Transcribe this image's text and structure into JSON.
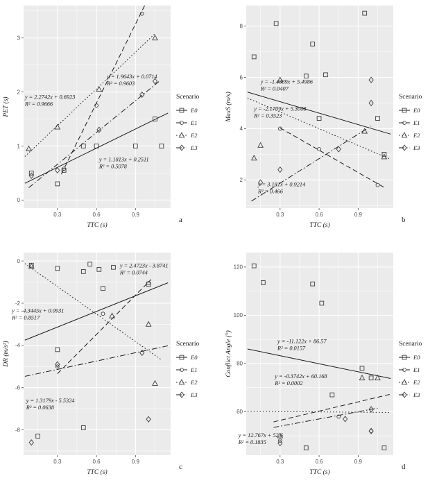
{
  "figure": {
    "background": "#ffffff",
    "panel_background": "#ebebeb",
    "grid_color": "#ffffff",
    "line_color": "#1a1a1a",
    "marker_color": "#3d3d3d"
  },
  "chart_data": [
    {
      "panel_label": "a",
      "type": "scatter",
      "xlabel": "TTC (s)",
      "ylabel": "PET (s)",
      "xticks": [
        0.3,
        0.6,
        0.9
      ],
      "yticks": [
        0,
        1,
        2,
        3
      ],
      "xlim": [
        0.04,
        1.17
      ],
      "ylim": [
        -0.15,
        3.6
      ],
      "legend": {
        "title": "Scenario",
        "entries": [
          {
            "label": "E0",
            "marker": "square",
            "linetype": "solid"
          },
          {
            "label": "E1",
            "marker": "circle",
            "linetype": "dashed"
          },
          {
            "label": "E2",
            "marker": "triangle",
            "linetype": "dotted"
          },
          {
            "label": "E3",
            "marker": "diamond",
            "linetype": "dashdot"
          }
        ]
      },
      "series": [
        {
          "name": "E0",
          "marker": "square",
          "linetype": "solid",
          "fit": {
            "slope": 1.1813,
            "intercept": 0.2511,
            "x0": 0.05,
            "x1": 1.15
          },
          "points": [
            [
              0.1,
              0.5
            ],
            [
              0.3,
              0.3
            ],
            [
              0.35,
              0.55
            ],
            [
              0.5,
              1.0
            ],
            [
              0.6,
              1.0
            ],
            [
              0.9,
              1.0
            ],
            [
              1.05,
              1.5
            ],
            [
              1.1,
              1.0
            ]
          ]
        },
        {
          "name": "E1",
          "marker": "circle",
          "linetype": "dashed",
          "fit": {
            "slope": 4.875,
            "intercept": -1.13,
            "x0": 0.33,
            "x1": 0.97
          },
          "points": [
            [
              0.35,
              0.58
            ],
            [
              0.6,
              1.75
            ],
            [
              0.95,
              3.45
            ]
          ]
        },
        {
          "name": "E2",
          "marker": "triangle",
          "linetype": "dotted",
          "fit": {
            "slope": 2.2742,
            "intercept": 0.6923,
            "x0": 0.05,
            "x1": 1.05
          },
          "points": [
            [
              0.08,
              0.95
            ],
            [
              0.3,
              1.35
            ],
            [
              0.62,
              2.05
            ],
            [
              1.05,
              3.0
            ]
          ]
        },
        {
          "name": "E3",
          "marker": "diamond",
          "linetype": "dashdot",
          "fit": {
            "slope": 1.9643,
            "intercept": 0.0714,
            "x0": 0.08,
            "x1": 1.08
          },
          "points": [
            [
              0.1,
              0.45
            ],
            [
              0.3,
              0.55
            ],
            [
              0.62,
              1.3
            ],
            [
              0.95,
              1.95
            ],
            [
              1.05,
              2.2
            ]
          ]
        }
      ],
      "annotations": [
        {
          "x": 0.05,
          "y": 1.87,
          "lines": [
            "y = 2.2742x + 0.6923",
            "R² = 0.9666"
          ]
        },
        {
          "x": 0.68,
          "y": 2.25,
          "lines": [
            "y = 1.9643x + 0.0714",
            "R² = 0.9603"
          ]
        },
        {
          "x": 0.62,
          "y": 0.72,
          "lines": [
            "y = 1.1813x + 0.2511",
            "R² = 0.5078"
          ]
        }
      ]
    },
    {
      "panel_label": "b",
      "type": "scatter",
      "xlabel": "TTC (s)",
      "ylabel": "MaxS (m/s)",
      "xticks": [
        0.3,
        0.6,
        0.9
      ],
      "yticks": [
        2,
        4,
        6,
        8
      ],
      "xlim": [
        0.04,
        1.17
      ],
      "ylim": [
        0.9,
        8.8
      ],
      "legend": {
        "title": "Scenario",
        "entries": [
          {
            "label": "E0",
            "marker": "square",
            "linetype": "solid"
          },
          {
            "label": "E1",
            "marker": "circle",
            "linetype": "dashed"
          },
          {
            "label": "E2",
            "marker": "triangle",
            "linetype": "dotted"
          },
          {
            "label": "E3",
            "marker": "diamond",
            "linetype": "dashdot"
          }
        ]
      },
      "series": [
        {
          "name": "E0",
          "marker": "square",
          "linetype": "solid",
          "fit": {
            "slope": -1.4889,
            "intercept": 5.4986,
            "x0": 0.05,
            "x1": 1.15
          },
          "points": [
            [
              0.1,
              6.8
            ],
            [
              0.27,
              8.1
            ],
            [
              0.5,
              6.05
            ],
            [
              0.55,
              7.3
            ],
            [
              0.6,
              4.4
            ],
            [
              0.65,
              6.1
            ],
            [
              0.95,
              8.5
            ],
            [
              1.05,
              4.4
            ],
            [
              1.1,
              3.0
            ]
          ]
        },
        {
          "name": "E1",
          "marker": "circle",
          "linetype": "dashed",
          "fit": {
            "slope": -2.9,
            "intercept": 4.9,
            "x0": 0.3,
            "x1": 1.1
          },
          "points": [
            [
              0.3,
              4.0
            ],
            [
              0.6,
              3.2
            ],
            [
              1.05,
              1.8
            ]
          ]
        },
        {
          "name": "E2",
          "marker": "triangle",
          "linetype": "dotted",
          "fit": {
            "slope": -2.1709,
            "intercept": 5.3008,
            "x0": 0.05,
            "x1": 1.15
          },
          "points": [
            [
              0.1,
              2.85
            ],
            [
              0.15,
              3.35
            ],
            [
              0.3,
              5.9
            ],
            [
              0.95,
              3.9
            ],
            [
              1.1,
              2.9
            ]
          ]
        },
        {
          "name": "E3",
          "marker": "diamond",
          "linetype": "dashdot",
          "fit": {
            "slope": 3.181,
            "intercept": 0.9214,
            "x0": 0.08,
            "x1": 1.0
          },
          "points": [
            [
              0.15,
              1.9
            ],
            [
              0.3,
              2.4
            ],
            [
              0.75,
              3.2
            ],
            [
              1.0,
              5.9
            ],
            [
              1.0,
              5.0
            ]
          ]
        }
      ],
      "annotations": [
        {
          "x": 0.15,
          "y": 5.75,
          "lines": [
            "y = -1.4889x + 5.4986",
            "R² = 0.0407"
          ]
        },
        {
          "x": 0.1,
          "y": 4.7,
          "lines": [
            "y = -2.1709x + 5.3008",
            "R² = 0.3523"
          ]
        },
        {
          "x": 0.13,
          "y": 1.75,
          "lines": [
            "y = 3.181x + 0.9214",
            "R² = 0.466"
          ]
        }
      ]
    },
    {
      "panel_label": "c",
      "type": "scatter",
      "xlabel": "TTC (s)",
      "ylabel": "DR (m/s²)",
      "xticks": [
        0.3,
        0.6,
        0.9
      ],
      "yticks": [
        0,
        -2,
        -4,
        -6,
        -8
      ],
      "xlim": [
        0.04,
        1.17
      ],
      "ylim": [
        -9.2,
        0.4
      ],
      "legend": {
        "title": "Scenario",
        "entries": [
          {
            "label": "E0",
            "marker": "square",
            "linetype": "solid"
          },
          {
            "label": "E1",
            "marker": "circle",
            "linetype": "dashed"
          },
          {
            "label": "E2",
            "marker": "triangle",
            "linetype": "dotted"
          },
          {
            "label": "E3",
            "marker": "diamond",
            "linetype": "dashdot"
          }
        ]
      },
      "series": [
        {
          "name": "E0",
          "marker": "square",
          "linetype": "solid",
          "fit": {
            "slope": 2.4723,
            "intercept": -3.8741,
            "x0": 0.05,
            "x1": 1.15
          },
          "points": [
            [
              0.1,
              -0.2
            ],
            [
              0.3,
              -0.35
            ],
            [
              0.5,
              -0.5
            ],
            [
              0.55,
              -0.15
            ],
            [
              0.62,
              -0.4
            ],
            [
              0.65,
              -1.3
            ],
            [
              0.73,
              -0.3
            ],
            [
              1.0,
              -1.1
            ],
            [
              0.15,
              -8.3
            ],
            [
              0.5,
              -7.9
            ],
            [
              0.3,
              -4.2
            ]
          ]
        },
        {
          "name": "E1",
          "marker": "circle",
          "linetype": "dashed",
          "fit": {
            "slope": 6.2,
            "intercept": -7.2,
            "x0": 0.3,
            "x1": 1.02
          },
          "points": [
            [
              0.3,
              -5.0
            ],
            [
              0.65,
              -2.5
            ],
            [
              1.0,
              -1.05
            ]
          ]
        },
        {
          "name": "E2",
          "marker": "triangle",
          "linetype": "dotted",
          "fit": {
            "slope": -4.3445,
            "intercept": 0.0931,
            "x0": 0.05,
            "x1": 1.1
          },
          "points": [
            [
              0.1,
              -0.25
            ],
            [
              0.72,
              -2.6
            ],
            [
              1.0,
              -3.0
            ],
            [
              1.05,
              -5.8
            ]
          ]
        },
        {
          "name": "E3",
          "marker": "diamond",
          "linetype": "dashdot",
          "fit": {
            "slope": 1.3179,
            "intercept": -5.5324,
            "x0": 0.05,
            "x1": 1.15
          },
          "points": [
            [
              0.1,
              -8.6
            ],
            [
              0.3,
              -4.9
            ],
            [
              0.95,
              -4.35
            ],
            [
              1.0,
              -7.5
            ]
          ]
        }
      ],
      "annotations": [
        {
          "x": 0.78,
          "y": -0.3,
          "lines": [
            "y = 2.4723x - 3.8741",
            "R² = 0.0744"
          ]
        },
        {
          "x": -0.05,
          "y": -2.45,
          "lines": [
            "y = -4.3445x + 0.0931",
            "R² = 0.8517"
          ]
        },
        {
          "x": 0.06,
          "y": -6.7,
          "lines": [
            "y = 1.3179x - 5.5324",
            "R² = 0.0638"
          ]
        }
      ]
    },
    {
      "panel_label": "d",
      "type": "scatter",
      "xlabel": "TTC (s)",
      "ylabel": "Conflict Angle (°)",
      "xticks": [
        0.3,
        0.6,
        0.9
      ],
      "yticks": [
        60,
        80,
        100,
        120
      ],
      "xlim": [
        0.04,
        1.17
      ],
      "ylim": [
        42,
        126
      ],
      "legend": {
        "title": "Scenario",
        "entries": [
          {
            "label": "E0",
            "marker": "square",
            "linetype": "solid"
          },
          {
            "label": "E1",
            "marker": "circle",
            "linetype": "dashed"
          },
          {
            "label": "E2",
            "marker": "triangle",
            "linetype": "dotted"
          },
          {
            "label": "E3",
            "marker": "diamond",
            "linetype": "dashdot"
          }
        ]
      },
      "series": [
        {
          "name": "E0",
          "marker": "square",
          "linetype": "solid",
          "fit": {
            "slope": -11.122,
            "intercept": 86.57,
            "x0": 0.05,
            "x1": 1.15
          },
          "points": [
            [
              0.1,
              120.5
            ],
            [
              0.17,
              113.5
            ],
            [
              0.55,
              113
            ],
            [
              0.62,
              105
            ],
            [
              0.7,
              67
            ],
            [
              0.93,
              78
            ],
            [
              1.0,
              74
            ],
            [
              0.5,
              45
            ],
            [
              1.1,
              45
            ]
          ]
        },
        {
          "name": "E1",
          "marker": "circle",
          "linetype": "dashed",
          "fit": {
            "slope": 12.767,
            "intercept": 52.6,
            "x0": 0.25,
            "x1": 1.15
          },
          "points": [
            [
              0.3,
              48
            ],
            [
              0.75,
              58
            ],
            [
              1.0,
              52
            ]
          ]
        },
        {
          "name": "E2",
          "marker": "triangle",
          "linetype": "dotted",
          "fit": {
            "slope": -0.3742,
            "intercept": 60.168,
            "x0": 0.05,
            "x1": 1.15
          },
          "points": [
            [
              0.3,
              50
            ],
            [
              0.93,
              74
            ],
            [
              1.05,
              74
            ]
          ]
        },
        {
          "name": "E3",
          "marker": "diamond",
          "linetype": "dashdot",
          "fit": {
            "slope": 10.0,
            "intercept": 51.0,
            "x0": 0.25,
            "x1": 1.05
          },
          "points": [
            [
              0.3,
              47
            ],
            [
              0.8,
              57
            ],
            [
              1.0,
              61
            ],
            [
              1.0,
              52
            ]
          ]
        }
      ],
      "annotations": [
        {
          "x": 0.28,
          "y": 88.5,
          "lines": [
            "y = -11.122x + 86.57",
            "R² = 0.0157"
          ]
        },
        {
          "x": 0.26,
          "y": 74,
          "lines": [
            "y = -0.3742x + 60.168",
            "R² = 0.0002"
          ]
        },
        {
          "x": -0.02,
          "y": 49.5,
          "lines": [
            "y = 12.767x + 52.6",
            "R² = 0.1835"
          ]
        }
      ]
    }
  ]
}
